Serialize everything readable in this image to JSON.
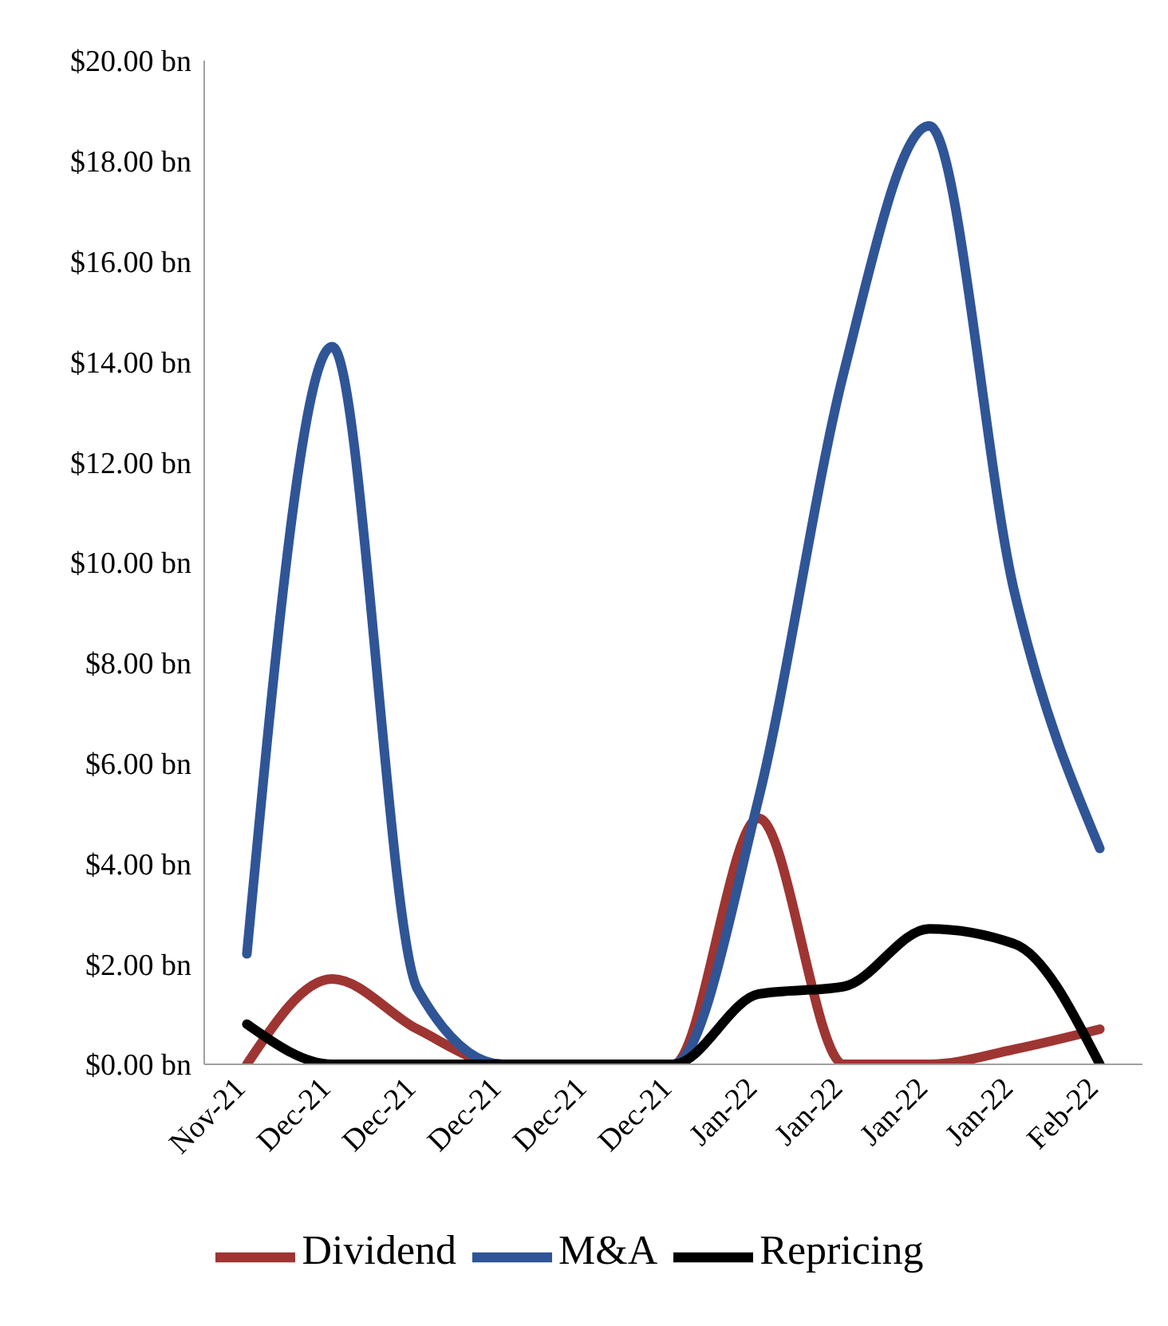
{
  "chart_data": {
    "type": "line",
    "categories": [
      "Nov-21",
      "Dec-21",
      "Dec-21",
      "Dec-21",
      "Dec-21",
      "Dec-21",
      "Jan-22",
      "Jan-22",
      "Jan-22",
      "Jan-22",
      "Feb-22"
    ],
    "series": [
      {
        "name": "Dividend",
        "color": "#9e3532",
        "values": [
          0,
          1.7,
          0.7,
          0,
          0,
          0,
          4.9,
          0,
          0,
          0.3,
          0.7
        ]
      },
      {
        "name": "M&A",
        "color": "#2f5597",
        "values": [
          2.2,
          14.3,
          1.5,
          0,
          0,
          0,
          5.3,
          13.8,
          18.7,
          9.4,
          4.3
        ]
      },
      {
        "name": "Repricing",
        "color": "#000000",
        "values": [
          0.8,
          0,
          0,
          0,
          0,
          0,
          1.4,
          1.55,
          2.7,
          2.4,
          0
        ]
      }
    ],
    "ylim": [
      0,
      20
    ],
    "yticks": [
      {
        "value": 0,
        "label": "$0.00 bn"
      },
      {
        "value": 2,
        "label": "$2.00 bn"
      },
      {
        "value": 4,
        "label": "$4.00 bn"
      },
      {
        "value": 6,
        "label": "$6.00 bn"
      },
      {
        "value": 8,
        "label": "$8.00 bn"
      },
      {
        "value": 10,
        "label": "$10.00 bn"
      },
      {
        "value": 12,
        "label": "$12.00 bn"
      },
      {
        "value": 14,
        "label": "$14.00 bn"
      },
      {
        "value": 16,
        "label": "$16.00 bn"
      },
      {
        "value": 18,
        "label": "$18.00 bn"
      },
      {
        "value": 20,
        "label": "$20.00 bn"
      }
    ],
    "legend": "bottom",
    "marker": "none",
    "line_style": "solid",
    "grid": false
  }
}
